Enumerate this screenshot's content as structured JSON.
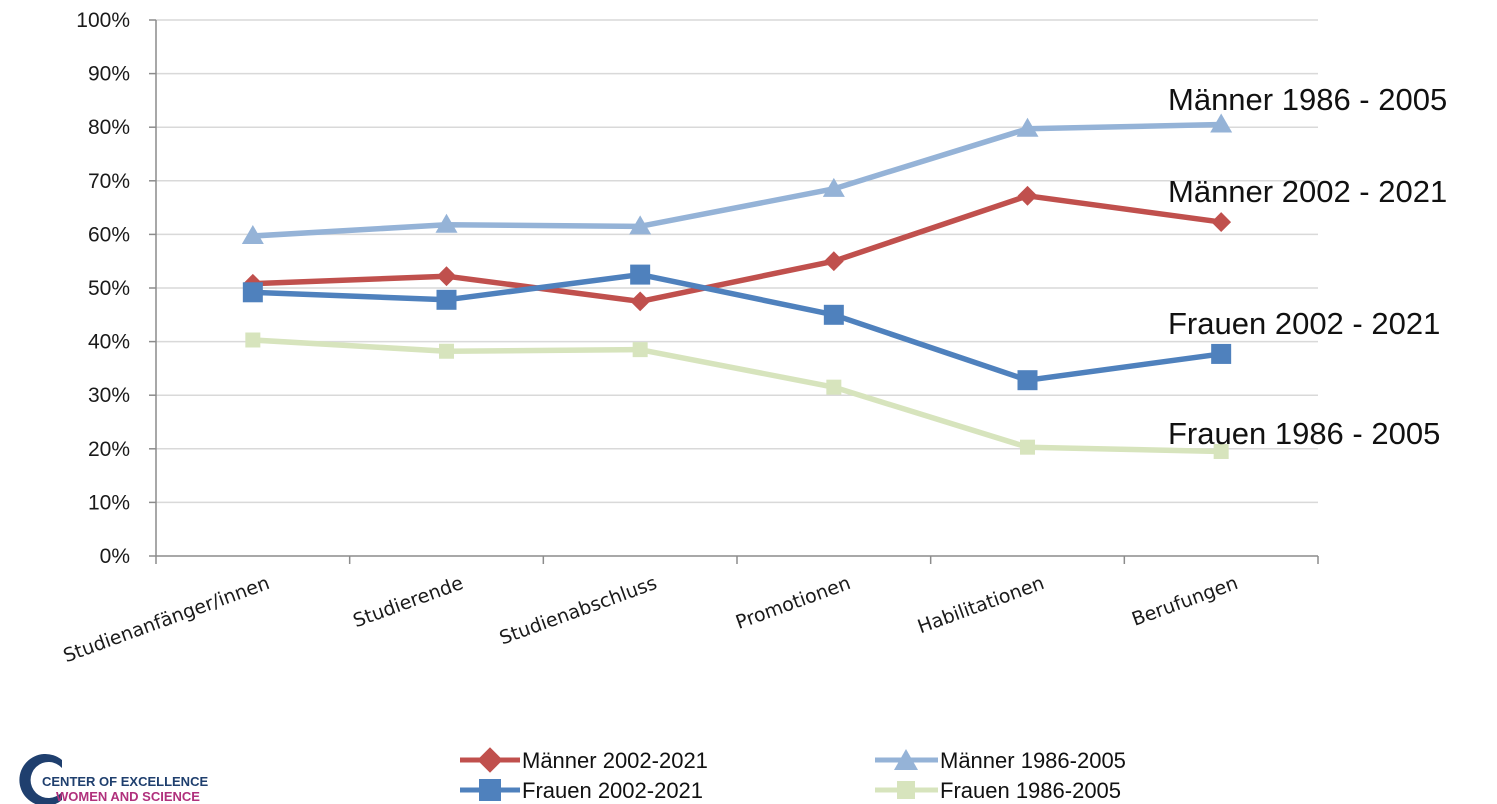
{
  "chart_data": {
    "type": "line",
    "categories": [
      "Studienanfänger/innen",
      "Studierende",
      "Studienabschluss",
      "Promotionen",
      "Habilitationen",
      "Berufungen"
    ],
    "ylim": [
      0,
      100
    ],
    "yticks": [
      "0%",
      "10%",
      "20%",
      "30%",
      "40%",
      "50%",
      "60%",
      "70%",
      "80%",
      "90%",
      "100%"
    ],
    "grid": true,
    "legend": "bottom",
    "series": [
      {
        "name": "Männer 2002-2021",
        "color": "#c0504d",
        "marker": "diamond",
        "values": [
          50.8,
          52.2,
          47.5,
          55,
          67.2,
          62.3
        ]
      },
      {
        "name": "Frauen 2002-2021",
        "color": "#4f81bd",
        "marker": "square",
        "values": [
          49.2,
          47.8,
          52.5,
          45,
          32.8,
          37.7
        ]
      },
      {
        "name": "Männer 1986-2005",
        "color": "#95b3d7",
        "marker": "triangle",
        "values": [
          59.7,
          61.8,
          61.5,
          68.5,
          79.7,
          80.5
        ]
      },
      {
        "name": "Frauen 1986-2005",
        "color": "#d7e4bd",
        "marker": "square",
        "values": [
          40.3,
          38.2,
          38.5,
          31.5,
          20.3,
          19.5
        ]
      }
    ],
    "annotations": [
      "Männer 1986 - 2005",
      "Männer 2002 - 2021",
      "Frauen 2002 - 2021",
      "Frauen 1986 - 2005"
    ]
  },
  "logo": {
    "line1": "CENTER OF EXCELLENCE",
    "line2": "WOMEN AND SCIENCE"
  }
}
